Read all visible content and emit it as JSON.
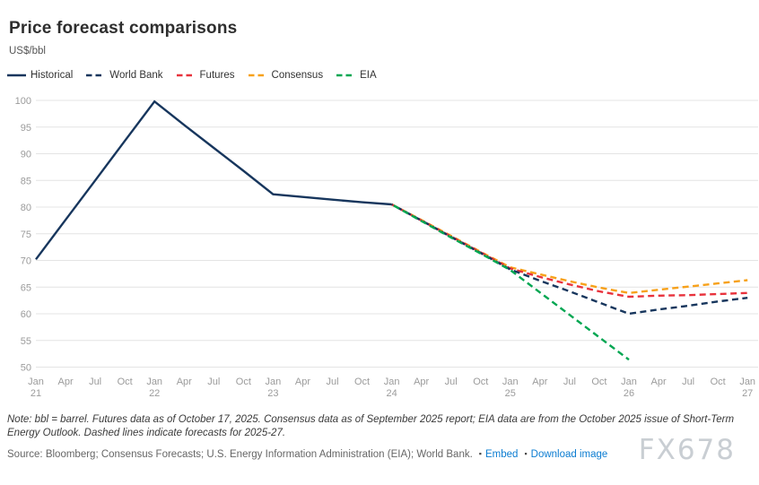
{
  "header": {
    "title": "Price forecast comparisons",
    "unit": "US$/bbl"
  },
  "chart_data": {
    "type": "line",
    "title": "Price forecast comparisons",
    "ylabel": "US$/bbl",
    "ylim": [
      50,
      100
    ],
    "yticks": [
      50,
      55,
      60,
      65,
      70,
      75,
      80,
      85,
      90,
      95,
      100
    ],
    "grid": "horizontal",
    "legend_position": "top-left",
    "x_labels": [
      "Jan 21",
      "Apr",
      "Jul",
      "Oct",
      "Jan 22",
      "Apr",
      "Jul",
      "Oct",
      "Jan 23",
      "Apr",
      "Jul",
      "Oct",
      "Jan 24",
      "Apr",
      "Jul",
      "Oct",
      "Jan 25",
      "Apr",
      "Jul",
      "Oct",
      "Jan 26",
      "Apr",
      "Jul",
      "Oct",
      "Jan 27"
    ],
    "series": [
      {
        "name": "Consensus",
        "color": "#f7a11a",
        "dashed": true,
        "dash_offset": 0,
        "x_start": 12,
        "values": [
          80.5,
          77.6,
          74.6,
          71.6,
          68.7,
          67.4,
          66.1,
          64.9,
          63.9,
          64.5,
          65.1,
          65.7,
          66.3
        ]
      },
      {
        "name": "Futures",
        "color": "#e8323c",
        "dashed": true,
        "dash_offset": 3,
        "x_start": 12,
        "values": [
          80.5,
          77.5,
          74.5,
          71.5,
          68.5,
          66.9,
          65.5,
          64.2,
          63.2,
          63.4,
          63.5,
          63.7,
          63.9
        ]
      },
      {
        "name": "World Bank",
        "color": "#17365d",
        "dashed": true,
        "dash_offset": 6,
        "x_start": 12,
        "values": [
          80.5,
          77.5,
          74.4,
          71.4,
          68.3,
          66.2,
          64.2,
          62.1,
          60.0,
          60.8,
          61.5,
          62.3,
          63.0
        ]
      },
      {
        "name": "EIA",
        "color": "#00a651",
        "dashed": true,
        "dash_offset": 9,
        "x_start": 12,
        "values": [
          80.5,
          77.4,
          74.3,
          71.3,
          68.2,
          64.0,
          59.8,
          55.6,
          51.4
        ]
      },
      {
        "name": "Historical",
        "color": "#17365d",
        "dashed": false,
        "dash_offset": 0,
        "x_start": 0,
        "values": [
          70.2,
          77.6,
          85.0,
          92.4,
          99.8,
          95.4,
          91.1,
          86.8,
          82.4,
          81.9,
          81.4,
          80.9,
          80.5
        ]
      }
    ],
    "legend_order": [
      "Historical",
      "World Bank",
      "Futures",
      "Consensus",
      "EIA"
    ]
  },
  "footer": {
    "note": "Note: bbl = barrel. Futures data as of October 17, 2025. Consensus data as of September 2025 report; EIA data are from the October 2025 issue of Short-Term Energy Outlook. Dashed lines indicate forecasts for 2025-27.",
    "source": "Source: Bloomberg; Consensus Forecasts; U.S. Energy Information Administration (EIA); World Bank.",
    "links": [
      {
        "label": "Embed"
      },
      {
        "label": "Download image"
      }
    ],
    "watermark": "FX678"
  },
  "style_colors": {
    "gridline": "#e4e4e4",
    "axis_text": "#9b9b9b",
    "link": "#0b7cd1"
  }
}
